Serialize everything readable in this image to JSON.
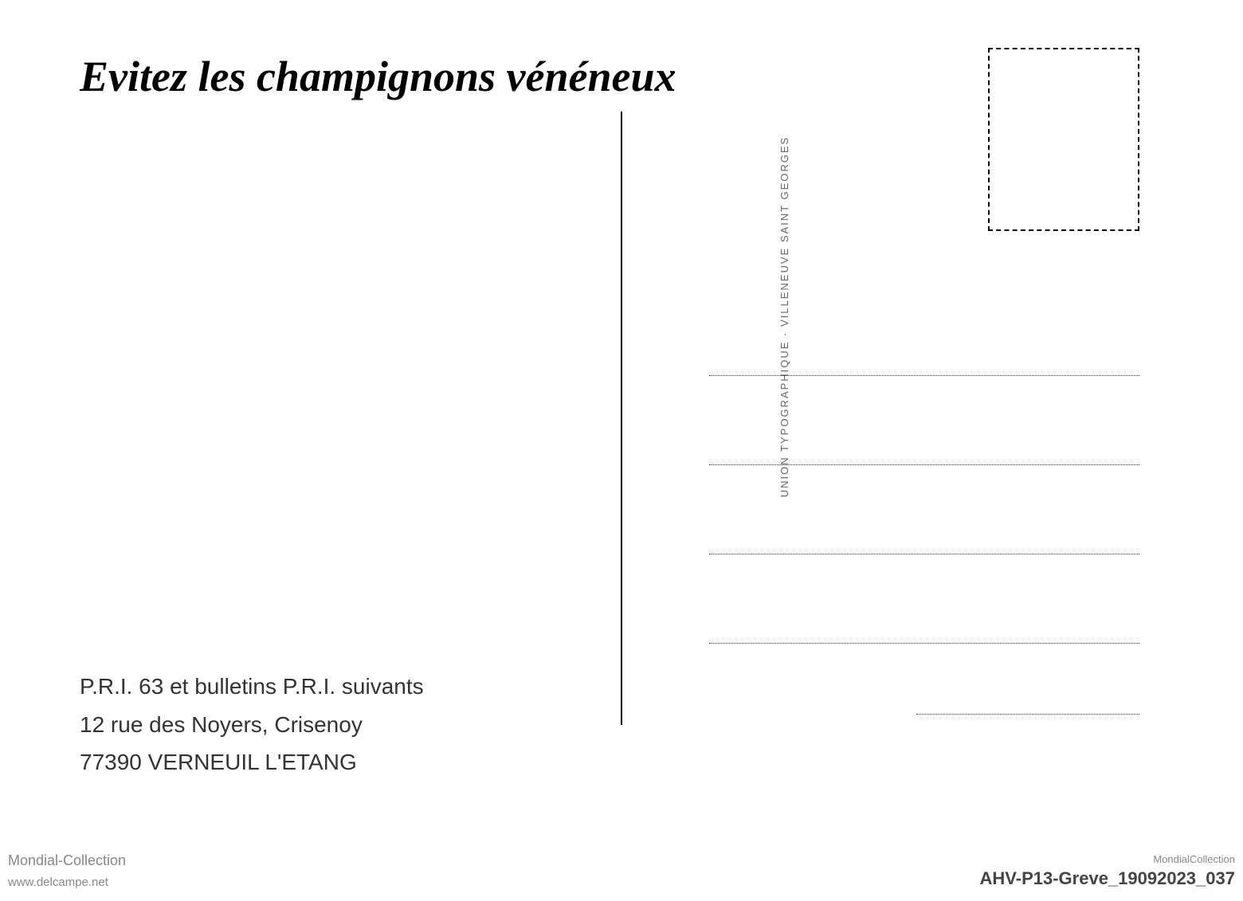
{
  "postcard": {
    "title": "Evitez les champignons vénéneux",
    "printer_text": "UNION TYPOGRAPHIQUE · VILLENEUVE SAINT GEORGES",
    "publisher": {
      "line1": "P.R.I. 63 et bulletins P.R.I. suivants",
      "line2": "12 rue des Noyers, Crisenoy",
      "line3": "77390 VERNEUIL L'ETANG"
    }
  },
  "watermarks": {
    "left_top": "Mondial-Collection",
    "left_bottom": "www.delcampe.net",
    "right_top": "MondialCollection",
    "right_bottom": "AHV-P13-Greve_19092023_037"
  },
  "styling": {
    "background_color": "#ffffff",
    "title_color": "#000000",
    "title_fontsize": 54,
    "divider_color": "#000000",
    "stamp_border_color": "#000000",
    "address_line_color": "#333333",
    "publisher_color": "#333333",
    "publisher_fontsize": 28,
    "watermark_color": "#888888",
    "vertical_text_color": "#666666"
  }
}
